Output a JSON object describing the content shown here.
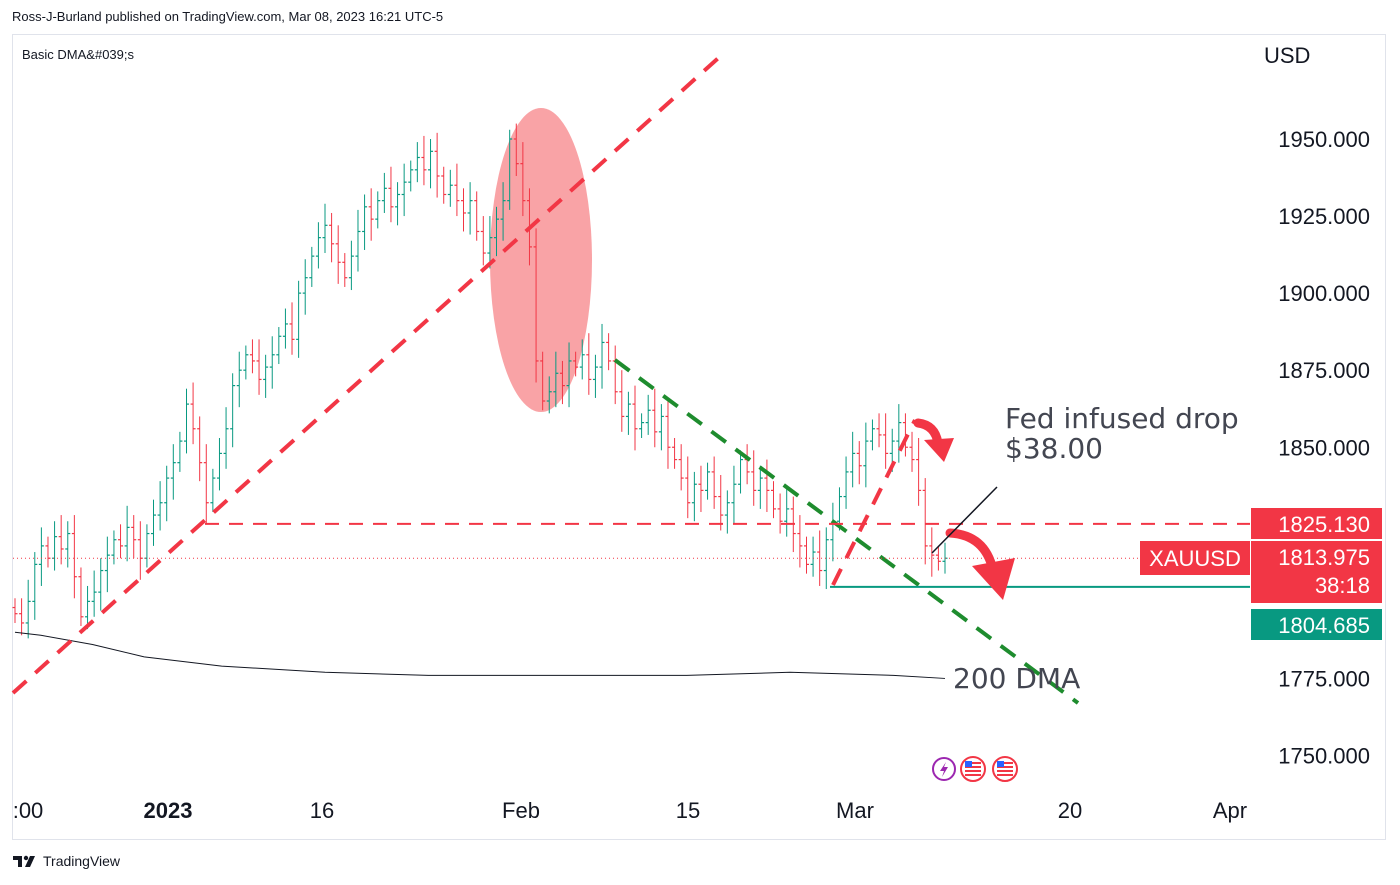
{
  "header": {
    "publisher_line": "Ross-J-Burland published on TradingView.com, Mar 08, 2023 16:21 UTC-5"
  },
  "footer": {
    "brand": "TradingView",
    "logo_icon": "tradingview-logo-icon"
  },
  "chart_data": {
    "type": "candlestick",
    "indicator_label": "Basic DMA&#039;s",
    "currency": "USD",
    "symbol": "XAUUSD",
    "y_ticks": [
      "1950.000",
      "1925.000",
      "1900.000",
      "1875.000",
      "1850.000",
      "1775.000",
      "1750.000"
    ],
    "ylim": [
      1742,
      1985
    ],
    "x_ticks": [
      ":00",
      "2023",
      "16",
      "Feb",
      "15",
      "Mar",
      "20",
      "Apr"
    ],
    "price_labels": {
      "resistance": {
        "value": "1825.130",
        "color": "#f23645"
      },
      "last": {
        "value": "1813.975",
        "countdown": "38:18",
        "color": "#f23645"
      },
      "support": {
        "value": "1804.685",
        "color": "#089981"
      }
    },
    "annotations": {
      "fed_drop_line1": "Fed infused drop",
      "fed_drop_line2": "$38.00",
      "dma_label": "200 DMA"
    },
    "events_icons": [
      "lightning-event-icon",
      "us-flag-event-icon",
      "us-flag-event-icon"
    ],
    "colors": {
      "up": "#089981",
      "down": "#f23645",
      "trend_red": "#f23645",
      "trend_green": "#1e8c2e",
      "ellipse": "#f77c80",
      "dma": "#131722"
    },
    "series": [
      {
        "name": "200 DMA",
        "points": [
          [
            0,
            1790
          ],
          [
            5,
            1789
          ],
          [
            15,
            1786
          ],
          [
            25,
            1782
          ],
          [
            40,
            1779
          ],
          [
            60,
            1777
          ],
          [
            80,
            1776
          ],
          [
            100,
            1776
          ],
          [
            130,
            1776
          ],
          [
            150,
            1777
          ],
          [
            170,
            1776
          ],
          [
            180,
            1775
          ]
        ]
      }
    ],
    "closes": [
      1796,
      1793,
      1800,
      1812,
      1818,
      1814,
      1821,
      1817,
      1822,
      1808,
      1795,
      1800,
      1803,
      1810,
      1815,
      1820,
      1818,
      1824,
      1820,
      1814,
      1822,
      1828,
      1832,
      1840,
      1845,
      1852,
      1864,
      1856,
      1845,
      1832,
      1840,
      1848,
      1856,
      1870,
      1875,
      1880,
      1878,
      1872,
      1876,
      1880,
      1886,
      1890,
      1885,
      1900,
      1905,
      1912,
      1918,
      1922,
      1916,
      1910,
      1905,
      1912,
      1920,
      1928,
      1924,
      1930,
      1934,
      1928,
      1932,
      1936,
      1940,
      1944,
      1940,
      1946,
      1938,
      1932,
      1935,
      1930,
      1926,
      1930,
      1920,
      1913,
      1918,
      1924,
      1930,
      1950,
      1942,
      1930,
      1915,
      1878,
      1865,
      1868,
      1874,
      1870,
      1878,
      1876,
      1880,
      1872,
      1876,
      1884,
      1878,
      1868,
      1860,
      1864,
      1856,
      1858,
      1862,
      1855,
      1860,
      1850,
      1846,
      1840,
      1832,
      1838,
      1836,
      1842,
      1834,
      1828,
      1832,
      1838,
      1846,
      1842,
      1836,
      1840,
      1836,
      1830,
      1826,
      1830,
      1822,
      1818,
      1812,
      1816,
      1810,
      1820,
      1826,
      1834,
      1842,
      1848,
      1844,
      1852,
      1856,
      1854,
      1848,
      1852,
      1858,
      1850,
      1846,
      1836,
      1818,
      1815,
      1813,
      1814
    ]
  }
}
